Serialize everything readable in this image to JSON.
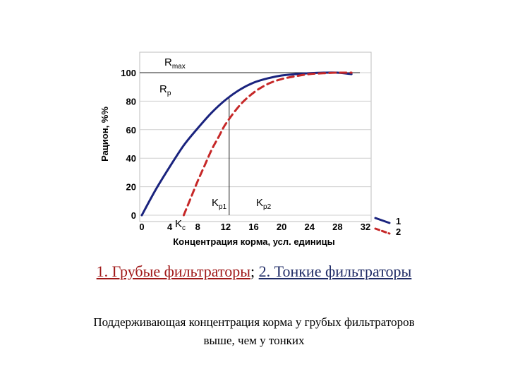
{
  "chart_data": {
    "type": "line",
    "xlabel": "Концентрация корма, усл. единицы",
    "ylabel": "Рацион, %%",
    "xlim": [
      0,
      32
    ],
    "ylim": [
      0,
      110
    ],
    "xticks": [
      "0",
      "4",
      "8",
      "12",
      "16",
      "20",
      "24",
      "28",
      "32"
    ],
    "yticks": [
      "0",
      "20",
      "40",
      "60",
      "80",
      "100"
    ],
    "grid": "horizontal",
    "series": [
      {
        "name": "1",
        "color": "#1a237e",
        "style": "solid",
        "x": [
          0,
          2,
          4,
          6,
          8,
          10,
          12,
          14,
          16,
          18,
          20,
          22,
          24,
          26,
          28,
          30
        ],
        "y": [
          0,
          18,
          34,
          49,
          61,
          72,
          81,
          88,
          93,
          96,
          98,
          99,
          99.6,
          100,
          100,
          99
        ]
      },
      {
        "name": "2",
        "color": "#c62828",
        "style": "dashed",
        "x": [
          6,
          7,
          8,
          9,
          10,
          11,
          12,
          14,
          16,
          18,
          20,
          22,
          24,
          26,
          28,
          30
        ],
        "y": [
          0,
          12,
          24,
          35,
          46,
          55,
          64,
          77,
          86,
          92,
          95.5,
          97.5,
          99,
          99.6,
          100,
          100
        ]
      }
    ],
    "reference_lines": [
      {
        "axis": "y",
        "value": 100
      },
      {
        "axis": "x",
        "value": 12.5,
        "from": 0,
        "to": 82
      }
    ],
    "annotations": [
      {
        "base": "R",
        "sub": "max"
      },
      {
        "base": "R",
        "sub": "p"
      },
      {
        "base": "K",
        "sub": "p1"
      },
      {
        "base": "K",
        "sub": "p2"
      },
      {
        "base": "K",
        "sub": "c"
      }
    ],
    "legend": {
      "position": "outside-right-bottom",
      "entries": [
        "1",
        "2"
      ]
    }
  },
  "caption": {
    "part1": "1. Грубые  фильтраторы",
    "separator": "; ",
    "part2": "2. Тонкие фильтраторы",
    "color1": "#a01818",
    "color2": "#1f2b66"
  },
  "note": {
    "line1": "Поддерживающая концентрация корма у грубых фильтраторов",
    "line2": "выше, чем у тонких"
  }
}
